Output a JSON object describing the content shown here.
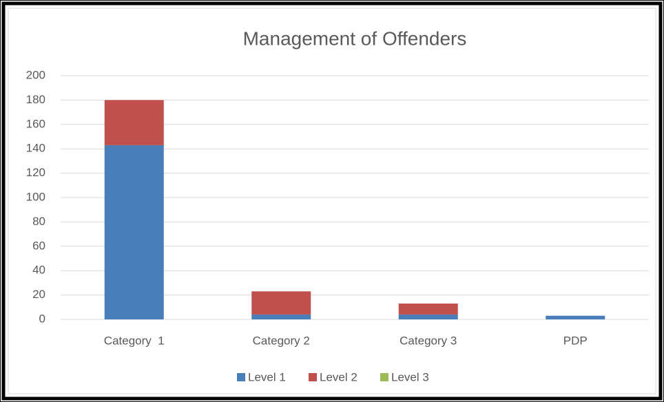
{
  "chart_data": {
    "type": "bar",
    "stacked": true,
    "title": "Management of Offenders",
    "categories": [
      "Category  1",
      "Category 2",
      "Category 3",
      "PDP"
    ],
    "series": [
      {
        "name": "Level 1",
        "color": "#4a7ebb",
        "values": [
          143,
          4,
          4,
          3
        ]
      },
      {
        "name": "Level 2",
        "color": "#c0504d",
        "values": [
          37,
          19,
          9,
          0
        ]
      },
      {
        "name": "Level 3",
        "color": "#9bbb59",
        "values": [
          0,
          0,
          0,
          0
        ]
      }
    ],
    "ylim": [
      0,
      200
    ],
    "yticks": [
      0,
      20,
      40,
      60,
      80,
      100,
      120,
      140,
      160,
      180,
      200
    ],
    "grid": true,
    "legend": "bottom"
  }
}
